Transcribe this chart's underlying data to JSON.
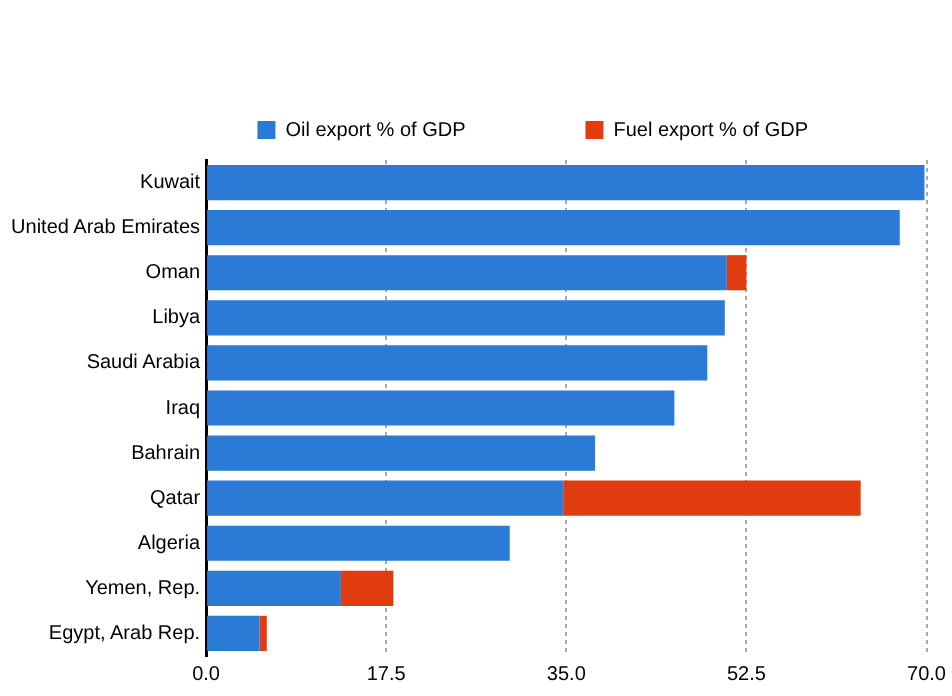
{
  "chart_data": {
    "type": "bar",
    "orientation": "horizontal",
    "stacked": true,
    "categories": [
      "Kuwait",
      "United Arab Emirates",
      "Oman",
      "Libya",
      "Saudi Arabia",
      "Iraq",
      "Bahrain",
      "Qatar",
      "Algeria",
      "Yemen, Rep.",
      "Egypt, Arab Rep."
    ],
    "series": [
      {
        "name": "Oil export % of GDP",
        "color": "#2a7ad6",
        "values": [
          69.8,
          67.4,
          50.6,
          50.4,
          48.7,
          45.5,
          37.8,
          34.7,
          29.5,
          13.1,
          5.2
        ]
      },
      {
        "name": "Fuel export % of GDP",
        "color": "#e03c10",
        "values": [
          null,
          null,
          1.9,
          null,
          null,
          null,
          null,
          28.9,
          null,
          5.1,
          0.7
        ]
      }
    ],
    "xlim": [
      0,
      70
    ],
    "xticks": [
      {
        "value": 0,
        "label": "0.0"
      },
      {
        "value": 17.5,
        "label": "17.5"
      },
      {
        "value": 35,
        "label": "35.0"
      },
      {
        "value": 52.5,
        "label": "52.5"
      },
      {
        "value": 70,
        "label": "70.0"
      }
    ],
    "grid": "x",
    "legend": "top"
  }
}
